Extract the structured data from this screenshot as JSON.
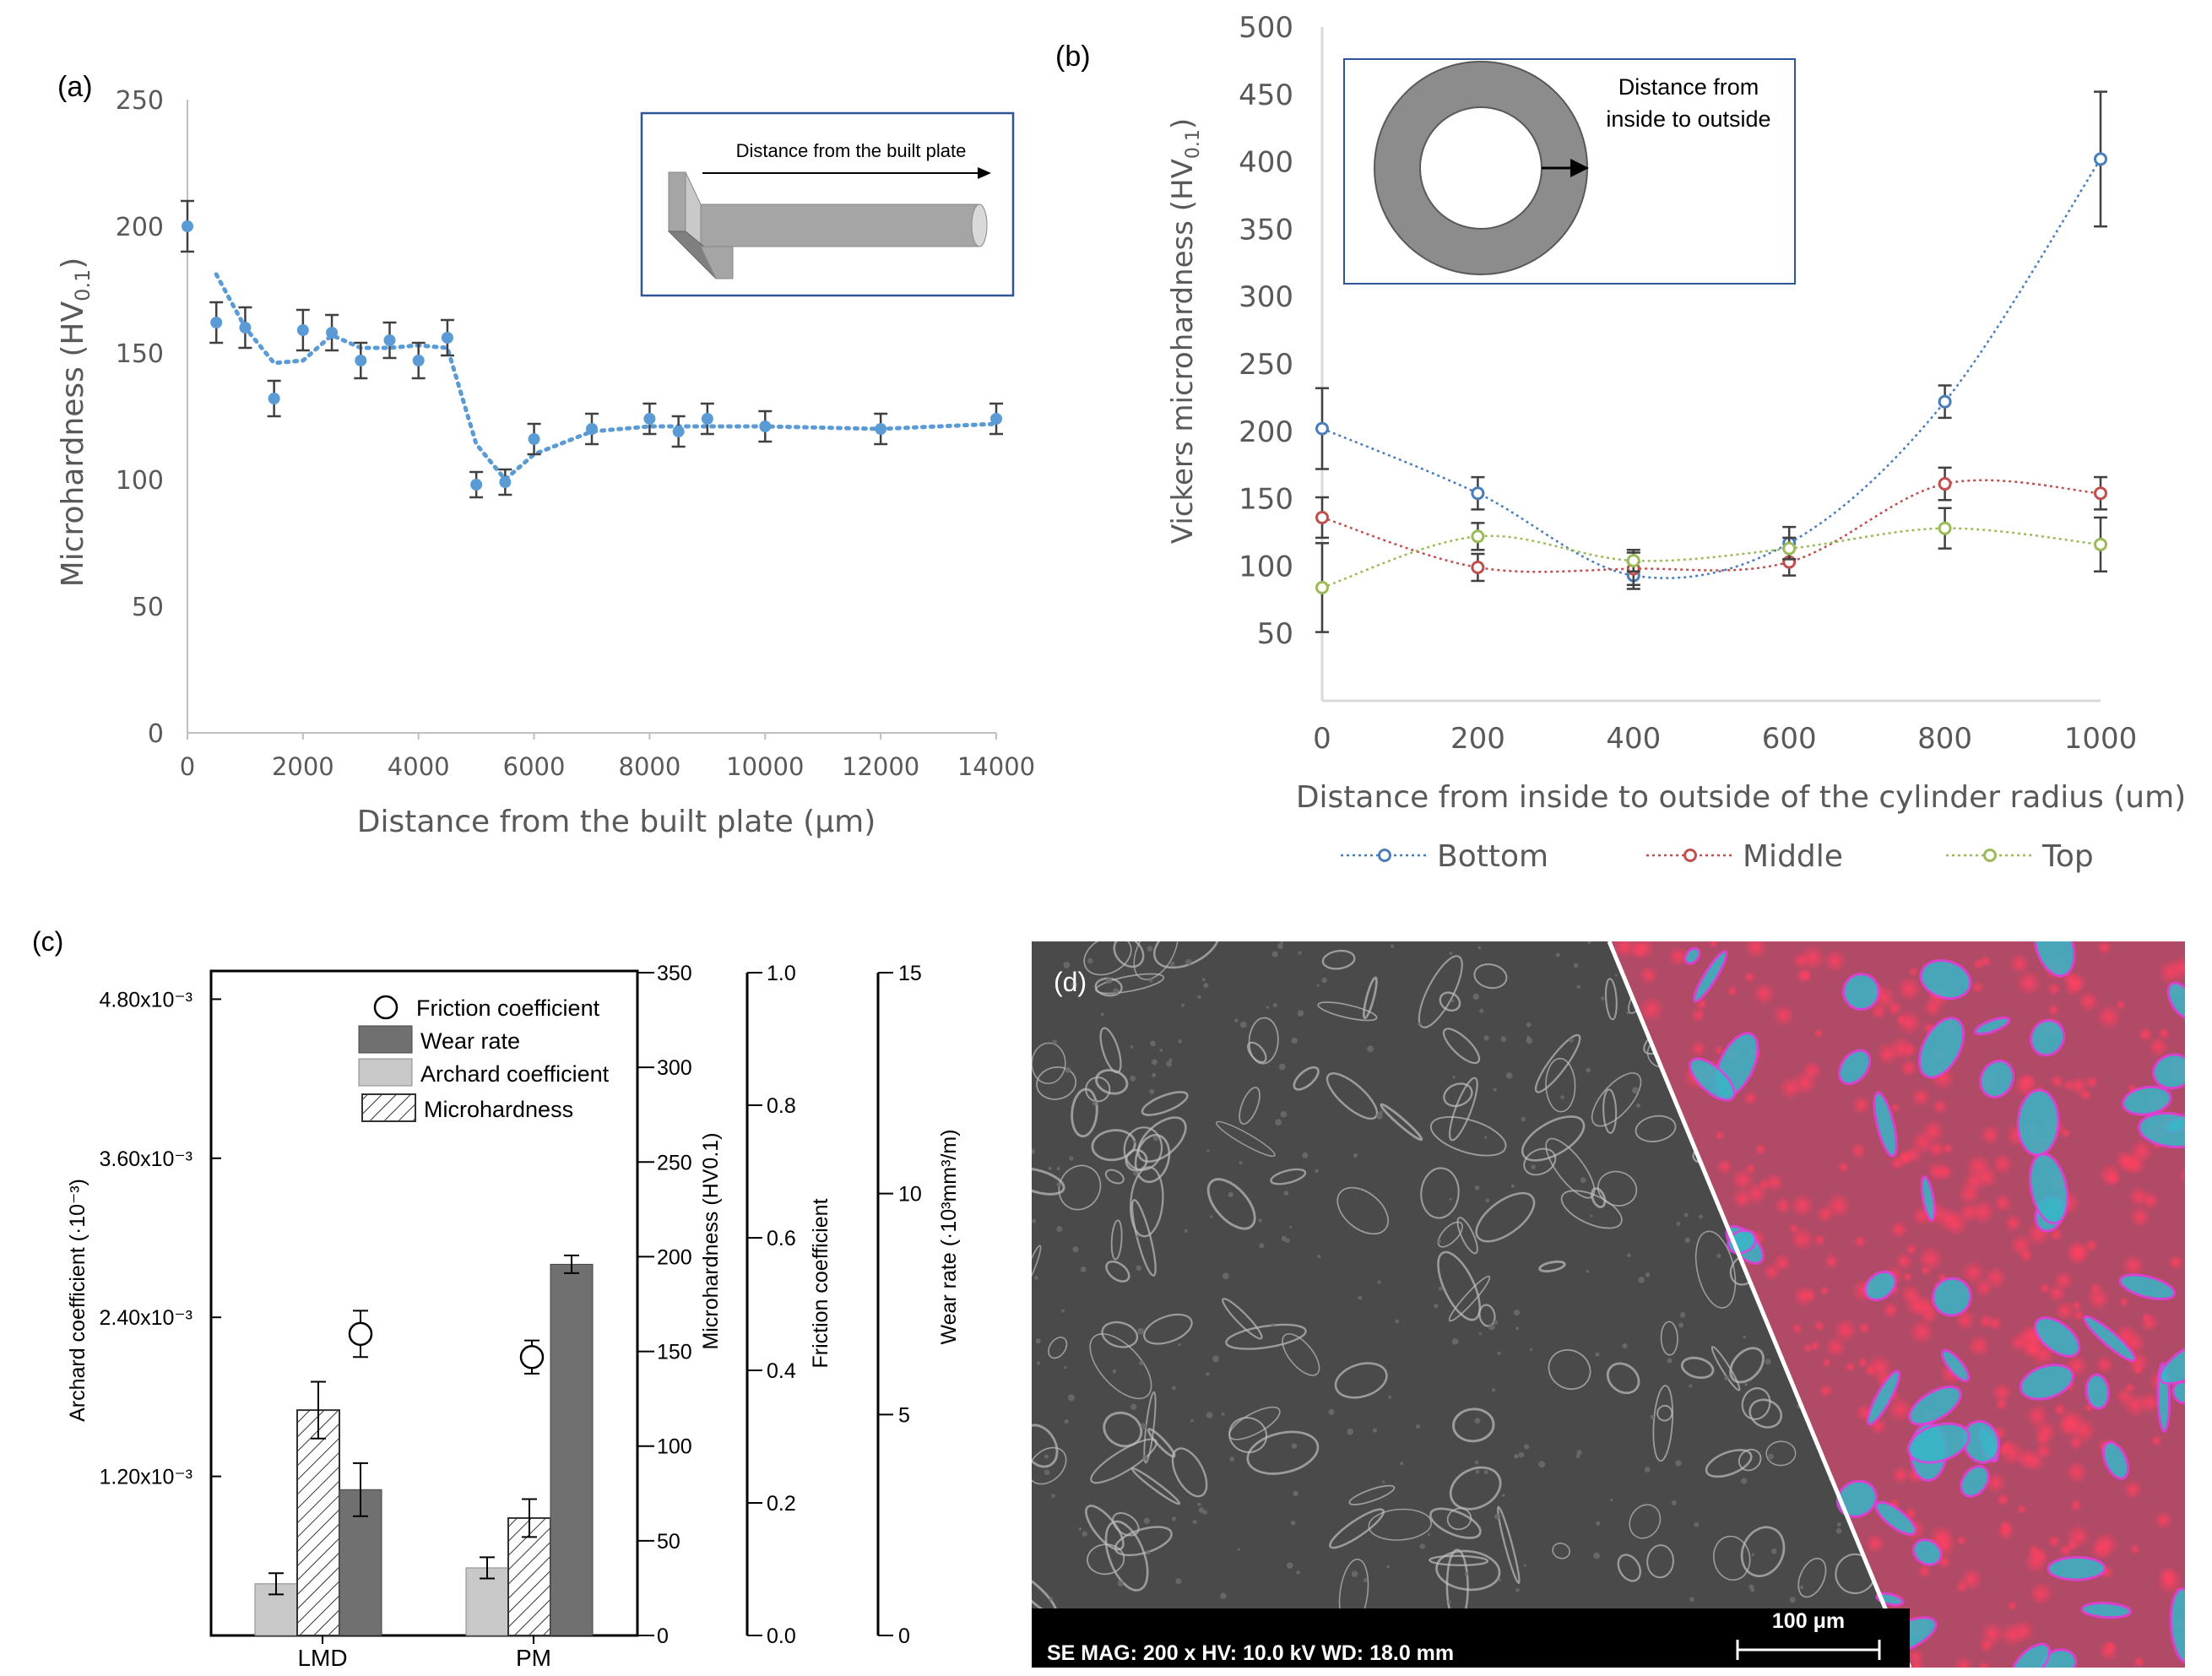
{
  "chart_data": [
    {
      "panel": "(a)",
      "type": "scatter",
      "xlabel": "Distance from the built plate (μm)",
      "ylabel_main": "Microhardness (HV",
      "ylabel_sub": "0.1",
      "ylabel_close": ")",
      "xlim": [
        0,
        14000
      ],
      "ylim": [
        0,
        250
      ],
      "xticks": [
        "0",
        "2000",
        "4000",
        "6000",
        "8000",
        "10000",
        "12000",
        "14000"
      ],
      "yticks": [
        "0",
        "50",
        "100",
        "150",
        "200",
        "250"
      ],
      "x": [
        0,
        500,
        1000,
        1500,
        2000,
        2500,
        3000,
        3500,
        4000,
        4500,
        5000,
        5500,
        6000,
        7000,
        8000,
        8500,
        9000,
        10000,
        12000,
        14000
      ],
      "y": [
        200,
        162,
        160,
        132,
        159,
        158,
        147,
        155,
        147,
        156,
        98,
        99,
        116,
        120,
        124,
        119,
        124,
        121,
        120,
        124
      ],
      "err": [
        10,
        8,
        8,
        7,
        8,
        7,
        7,
        7,
        7,
        7,
        5,
        5,
        6,
        6,
        6,
        6,
        6,
        6,
        6,
        6
      ],
      "trend": [
        [
          500,
          181
        ],
        [
          1000,
          160
        ],
        [
          1500,
          146
        ],
        [
          2000,
          147
        ],
        [
          2500,
          157
        ],
        [
          3000,
          152
        ],
        [
          3500,
          152
        ],
        [
          4000,
          153
        ],
        [
          4500,
          152
        ],
        [
          5000,
          114
        ],
        [
          5500,
          100
        ],
        [
          6000,
          110
        ],
        [
          7000,
          119
        ],
        [
          8000,
          121
        ],
        [
          9000,
          121
        ],
        [
          10000,
          121
        ],
        [
          12000,
          120
        ],
        [
          14000,
          122
        ]
      ],
      "marker_color": "#5b9bd5",
      "inset_label": "Distance from the built plate"
    },
    {
      "panel": "(b)",
      "type": "line",
      "xlabel": "Distance from inside to outside of the cylinder radius (um)",
      "ylabel": "Vickers microhardness (HV",
      "ylabel_sub": "0.1",
      "ylabel_close": ")",
      "xlim": [
        0,
        1000
      ],
      "ylim": [
        0,
        500
      ],
      "xticks": [
        "0",
        "200",
        "400",
        "600",
        "800",
        "1000"
      ],
      "yticks": [
        "50",
        "100",
        "150",
        "200",
        "250",
        "300",
        "350",
        "400",
        "450",
        "500"
      ],
      "x": [
        0,
        200,
        400,
        600,
        800,
        1000
      ],
      "series": [
        {
          "name": "Bottom",
          "color": "#4a7ebb",
          "values": [
            202,
            154,
            93,
            117,
            222,
            402
          ],
          "err": [
            30,
            12,
            10,
            12,
            12,
            50
          ]
        },
        {
          "name": "Middle",
          "color": "#c0504d",
          "values": [
            136,
            99,
            98,
            103,
            161,
            154
          ],
          "err": [
            15,
            10,
            12,
            10,
            12,
            12
          ]
        },
        {
          "name": "Top",
          "color": "#9bbb59",
          "values": [
            84,
            122,
            104,
            113,
            128,
            116
          ],
          "err": [
            33,
            10,
            8,
            8,
            15,
            20
          ]
        }
      ],
      "inset_label_line1": "Distance from",
      "inset_label_line2": "inside to outside"
    },
    {
      "panel": "(c)",
      "type": "bar",
      "categories": [
        "LMD",
        "PM"
      ],
      "legend": [
        "Friction coefficient",
        "Wear rate",
        "Archard coefficient",
        "Microhardness"
      ],
      "archard": {
        "label": "Archard coefficient (·10⁻³)",
        "ticks": [
          "1.20x10⁻³",
          "2.40x10⁻³",
          "3.60x10⁻³",
          "4.80x10⁻³"
        ],
        "ylim": [
          0,
          5.0
        ],
        "values": [
          0.39,
          0.51
        ],
        "err": [
          0.08,
          0.08
        ]
      },
      "microhardness": {
        "label": "Microhardness (HV0.1)",
        "ticks": [
          "0",
          "50",
          "100",
          "150",
          "200",
          "250",
          "300",
          "350"
        ],
        "ylim": [
          0,
          350
        ],
        "values": [
          119,
          62
        ],
        "err": [
          15,
          10
        ]
      },
      "friction": {
        "label": "Friction coefficient",
        "ticks": [
          "0.0",
          "0.2",
          "0.4",
          "0.6",
          "0.8",
          "1.0"
        ],
        "ylim": [
          0,
          1.0
        ],
        "values": [
          0.455,
          0.42
        ],
        "err": [
          0.035,
          0.025
        ]
      },
      "wear_rate": {
        "label": "Wear rate (·10³mm³/m)",
        "ticks": [
          "0",
          "5",
          "10",
          "15"
        ],
        "ylim": [
          0,
          15
        ],
        "values": [
          3.3,
          8.4
        ],
        "err": [
          0.6,
          0.2
        ]
      }
    }
  ],
  "panel_d": {
    "label": "(d)",
    "scale_label": "100 μm",
    "info": "SE  MAG: 200 x  HV: 10.0 kV  WD: 18.0 mm"
  }
}
